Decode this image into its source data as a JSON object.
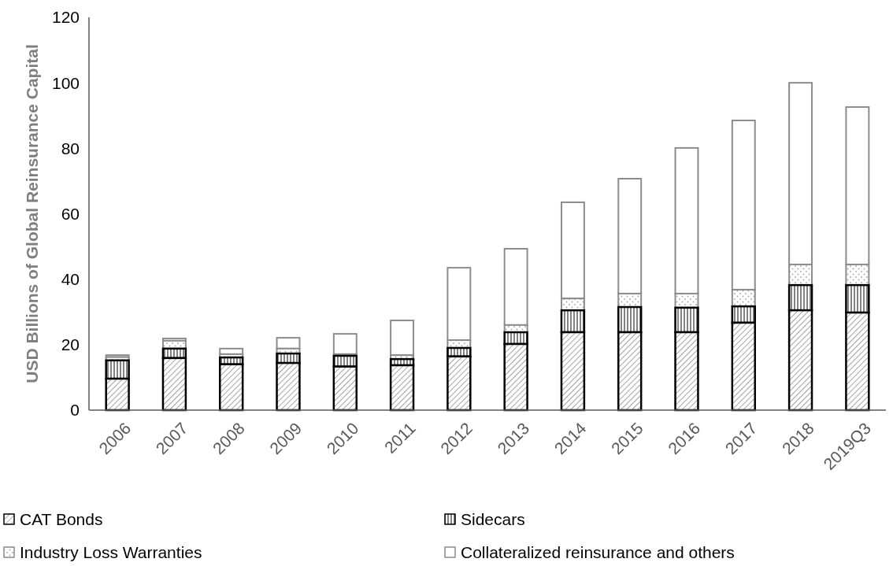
{
  "chart_data": {
    "type": "bar",
    "stacked": true,
    "ylabel": "USD Billions of Global Reinsurance Capital",
    "categories": [
      "2006",
      "2007",
      "2008",
      "2009",
      "2010",
      "2011",
      "2012",
      "2013",
      "2014",
      "2015",
      "2016",
      "2017",
      "2018",
      "2019Q3"
    ],
    "series": [
      {
        "name": "CAT Bonds",
        "color": "#000000",
        "values": [
          9.6,
          15.9,
          14.0,
          14.4,
          13.3,
          13.7,
          16.4,
          20.2,
          23.8,
          23.8,
          23.8,
          26.7,
          30.5,
          29.8
        ]
      },
      {
        "name": "Sidecars",
        "color": "#000000",
        "values": [
          5.6,
          2.9,
          2.1,
          2.9,
          3.3,
          1.9,
          2.6,
          3.6,
          6.7,
          7.7,
          7.5,
          5.0,
          7.7,
          8.4
        ]
      },
      {
        "name": "Industry Loss Warranties",
        "color": "#8c8c8c",
        "values": [
          1.0,
          2.4,
          1.0,
          1.5,
          0.5,
          1.2,
          2.4,
          2.2,
          3.6,
          4.1,
          4.3,
          5.1,
          6.3,
          6.3
        ]
      },
      {
        "name": "Collateralized reinsurance and others",
        "color": "#8c8c8c",
        "values": [
          0.6,
          0.7,
          1.7,
          3.3,
          6.2,
          10.6,
          22.1,
          23.3,
          29.4,
          35.1,
          44.5,
          51.7,
          55.5,
          48.1
        ]
      }
    ],
    "ylim": [
      0,
      120
    ],
    "yticks": [
      0,
      20,
      40,
      60,
      80,
      100,
      120
    ],
    "grid": false,
    "legend": "bottom"
  }
}
